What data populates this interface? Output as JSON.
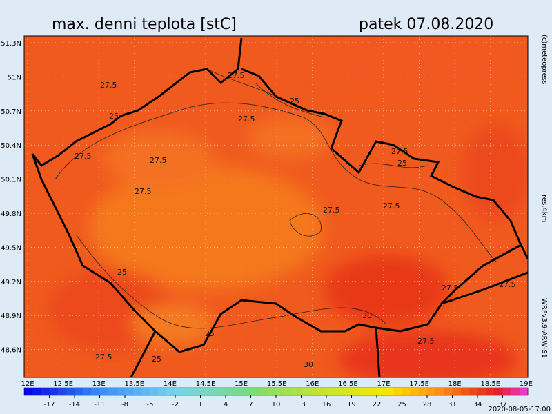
{
  "header": {
    "title": "max. denni teplota [stC]",
    "date": "patek 07.08.2020"
  },
  "side": {
    "copyright": "(c)meteopress",
    "resolution": "res.4km",
    "model": "WRFv3.9-ARW-S1"
  },
  "lat_labels": [
    "51.3N",
    "51N",
    "50.7N",
    "50.4N",
    "50.1N",
    "49.8N",
    "49.5N",
    "49.2N",
    "48.9N",
    "48.6N"
  ],
  "lon_labels": [
    "12E",
    "12.5E",
    "13E",
    "13.5E",
    "14E",
    "14.5E",
    "15E",
    "15.5E",
    "16E",
    "16.5E",
    "17E",
    "17.5E",
    "18E",
    "18.5E",
    "19E"
  ],
  "contour_labels": [
    27.5,
    27.5,
    25,
    27.5,
    25,
    27.5,
    27.5,
    25,
    27.5,
    27.5,
    27.5,
    25,
    27.5,
    25,
    27.5,
    25,
    30,
    27.5,
    27.5,
    30,
    27.5
  ],
  "colorbar": {
    "lim": [
      -20,
      40
    ],
    "ticks": [
      -17,
      -14,
      -11,
      -8,
      -5,
      -2,
      1,
      4,
      7,
      10,
      13,
      16,
      19,
      22,
      25,
      28,
      31,
      34,
      37
    ]
  },
  "run": "2020-08-05-17:00"
}
